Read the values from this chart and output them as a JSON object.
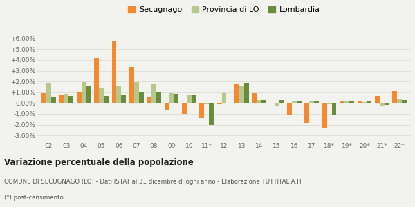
{
  "years": [
    "02",
    "03",
    "04",
    "05",
    "06",
    "07",
    "08",
    "09",
    "10",
    "11*",
    "12",
    "13",
    "14",
    "15",
    "16",
    "17",
    "18*",
    "19*",
    "20*",
    "21*",
    "22*"
  ],
  "secugnago": [
    0.9,
    0.8,
    1.0,
    4.2,
    5.8,
    3.35,
    0.55,
    -0.7,
    -1.0,
    -1.4,
    -0.1,
    1.75,
    0.9,
    -0.05,
    -1.1,
    -1.85,
    -2.3,
    0.2,
    0.15,
    0.65,
    1.1
  ],
  "provincia": [
    1.8,
    0.85,
    1.95,
    1.35,
    1.55,
    1.95,
    1.75,
    0.9,
    0.75,
    -0.1,
    0.95,
    1.55,
    0.3,
    -0.2,
    0.2,
    0.2,
    -0.1,
    0.2,
    0.1,
    -0.25,
    0.35
  ],
  "lombardia": [
    0.55,
    0.65,
    1.55,
    0.65,
    0.7,
    1.0,
    1.0,
    0.85,
    0.8,
    -2.05,
    -0.05,
    1.8,
    0.25,
    0.25,
    0.15,
    0.2,
    -1.1,
    0.2,
    0.2,
    -0.15,
    0.3
  ],
  "color_secugnago": "#f4892f",
  "color_provincia": "#b5c98e",
  "color_lombardia": "#6a8c3e",
  "ylim": [
    -3.5,
    6.5
  ],
  "yticks": [
    -3.0,
    -2.0,
    -1.0,
    0.0,
    1.0,
    2.0,
    3.0,
    4.0,
    5.0,
    6.0
  ],
  "title": "Variazione percentuale della popolazione",
  "subtitle": "COMUNE DI SECUGNAGO (LO) - Dati ISTAT al 31 dicembre di ogni anno - Elaborazione TUTTITALIA.IT",
  "footnote": "(*) post-censimento",
  "bg_color": "#f2f2ee",
  "grid_color": "#e0e0d8",
  "bar_width": 0.27
}
